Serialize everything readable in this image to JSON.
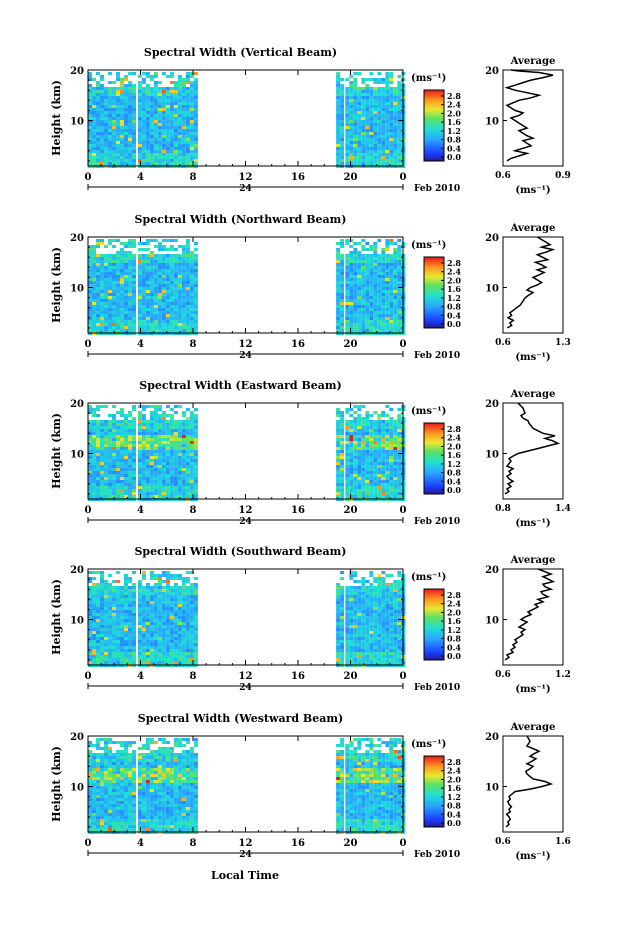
{
  "figure": {
    "date_label": "Feb 2010",
    "day_label": "24",
    "xlabel": "Local Time",
    "ylabel": "Height (km)",
    "colorbar_unit": "(ms⁻¹)",
    "average_title": "Average",
    "average_unit": "(ms⁻¹)"
  },
  "chart_data": [
    {
      "type": "heatmap",
      "title": "Spectral Width (Vertical Beam)",
      "xlabel": "Local Time",
      "ylabel": "Height (km)",
      "xlim": [
        0,
        24
      ],
      "ylim": [
        1,
        20
      ],
      "x_ticks": [
        "0",
        "4",
        "8",
        "12",
        "16",
        "20",
        "0"
      ],
      "y_ticks": [
        "10",
        "20"
      ],
      "colorbar_ticks": [
        "0.0",
        "0.4",
        "0.8",
        "1.2",
        "1.6",
        "2.0",
        "2.4",
        "2.8"
      ],
      "data_segments_hours": [
        [
          0,
          3.6
        ],
        [
          3.8,
          8.2
        ],
        [
          18.9,
          19.4
        ],
        [
          19.6,
          24
        ]
      ],
      "average": {
        "title": "Average",
        "xlim": [
          0.6,
          0.9
        ],
        "x_ticks": [
          "0.6",
          "0.9"
        ],
        "y_ticks": [
          "10",
          "20"
        ],
        "x": [
          0.62,
          0.64,
          0.68,
          0.72,
          0.66,
          0.7,
          0.74,
          0.72,
          0.7,
          0.75,
          0.72,
          0.7,
          0.68,
          0.72,
          0.7,
          0.68,
          0.66,
          0.64,
          0.68,
          0.7,
          0.66,
          0.64,
          0.62,
          0.65,
          0.68,
          0.74,
          0.78,
          0.72,
          0.66,
          0.62,
          0.66,
          0.7,
          0.74,
          0.8,
          0.85,
          0.78,
          0.68,
          0.64
        ],
        "y": [
          2.0,
          2.5,
          3.0,
          3.5,
          4.0,
          4.5,
          5.0,
          5.5,
          6.0,
          6.5,
          7.0,
          7.5,
          8.0,
          8.5,
          9.0,
          9.5,
          10.0,
          10.5,
          11.0,
          11.5,
          12.0,
          12.5,
          13.0,
          13.5,
          14.0,
          14.5,
          15.0,
          15.5,
          16.0,
          16.5,
          17.0,
          17.5,
          18.0,
          18.5,
          19.0,
          19.5,
          19.8,
          20.0
        ]
      }
    },
    {
      "type": "heatmap",
      "title": "Spectral Width (Northward Beam)",
      "xlabel": "Local Time",
      "ylabel": "Height (km)",
      "xlim": [
        0,
        24
      ],
      "ylim": [
        1,
        20
      ],
      "x_ticks": [
        "0",
        "4",
        "8",
        "12",
        "16",
        "20",
        "0"
      ],
      "y_ticks": [
        "10",
        "20"
      ],
      "colorbar_ticks": [
        "0.0",
        "0.4",
        "0.8",
        "1.2",
        "1.6",
        "2.0",
        "2.4",
        "2.8"
      ],
      "data_segments_hours": [
        [
          0,
          3.6
        ],
        [
          3.8,
          8.2
        ],
        [
          18.9,
          19.4
        ],
        [
          19.6,
          24
        ]
      ],
      "average": {
        "title": "Average",
        "xlim": [
          0.6,
          1.3
        ],
        "x_ticks": [
          "0.6",
          "1.3"
        ],
        "y_ticks": [
          "10",
          "20"
        ],
        "x": [
          0.65,
          0.7,
          0.68,
          0.72,
          0.66,
          0.7,
          0.68,
          0.72,
          0.76,
          0.8,
          0.82,
          0.84,
          0.86,
          0.9,
          0.95,
          0.88,
          0.92,
          1.0,
          1.05,
          1.0,
          0.95,
          1.02,
          1.08,
          1.0,
          1.1,
          1.05,
          0.98,
          1.12,
          1.06,
          1.0,
          1.1,
          1.18,
          1.05,
          1.15,
          1.1,
          1.0
        ],
        "y": [
          2.0,
          2.5,
          3.0,
          3.5,
          4.0,
          4.5,
          5.0,
          5.5,
          6.0,
          6.5,
          7.0,
          7.5,
          8.0,
          8.5,
          9.0,
          9.5,
          10.0,
          10.5,
          11.0,
          11.5,
          12.0,
          12.5,
          13.0,
          13.5,
          14.0,
          14.5,
          15.0,
          15.5,
          16.0,
          16.5,
          17.0,
          17.5,
          18.0,
          18.5,
          19.0,
          20.0
        ]
      }
    },
    {
      "type": "heatmap",
      "title": "Spectral Width (Eastward Beam)",
      "xlabel": "Local Time",
      "ylabel": "Height (km)",
      "xlim": [
        0,
        24
      ],
      "ylim": [
        1,
        20
      ],
      "x_ticks": [
        "0",
        "4",
        "8",
        "12",
        "16",
        "20",
        "0"
      ],
      "y_ticks": [
        "10",
        "20"
      ],
      "colorbar_ticks": [
        "0.0",
        "0.4",
        "0.8",
        "1.2",
        "1.6",
        "2.0",
        "2.4",
        "2.8"
      ],
      "data_segments_hours": [
        [
          0,
          3.6
        ],
        [
          3.8,
          8.2
        ],
        [
          18.9,
          19.4
        ],
        [
          19.6,
          24
        ]
      ],
      "average": {
        "title": "Average",
        "xlim": [
          0.8,
          1.4
        ],
        "x_ticks": [
          "0.8",
          "1.4"
        ],
        "y_ticks": [
          "10",
          "20"
        ],
        "x": [
          0.82,
          0.86,
          0.84,
          0.88,
          0.85,
          0.9,
          0.86,
          0.84,
          0.88,
          0.86,
          0.9,
          0.84,
          0.86,
          0.88,
          0.86,
          0.9,
          0.95,
          1.05,
          1.15,
          1.25,
          1.35,
          1.3,
          1.22,
          1.32,
          1.2,
          1.15,
          1.1,
          1.08,
          1.06,
          1.05,
          1.0,
          0.98,
          1.02,
          1.0,
          0.95
        ],
        "y": [
          2.0,
          2.5,
          3.0,
          3.5,
          4.0,
          4.5,
          5.0,
          5.5,
          6.0,
          6.5,
          7.0,
          7.5,
          8.0,
          8.5,
          9.0,
          9.5,
          10.0,
          10.5,
          11.0,
          11.5,
          12.0,
          12.5,
          13.0,
          13.5,
          14.0,
          14.5,
          15.0,
          15.5,
          16.0,
          16.5,
          17.0,
          17.5,
          18.0,
          19.0,
          20.0
        ]
      }
    },
    {
      "type": "heatmap",
      "title": "Spectral Width (Southward Beam)",
      "xlabel": "Local Time",
      "ylabel": "Height (km)",
      "xlim": [
        0,
        24
      ],
      "ylim": [
        1,
        20
      ],
      "x_ticks": [
        "0",
        "4",
        "8",
        "12",
        "16",
        "20",
        "0"
      ],
      "y_ticks": [
        "10",
        "20"
      ],
      "colorbar_ticks": [
        "0.0",
        "0.4",
        "0.8",
        "1.2",
        "1.6",
        "2.0",
        "2.4",
        "2.8"
      ],
      "data_segments_hours": [
        [
          0,
          3.6
        ],
        [
          3.8,
          8.2
        ],
        [
          18.9,
          19.4
        ],
        [
          19.6,
          24
        ]
      ],
      "average": {
        "title": "Average",
        "xlim": [
          0.6,
          1.2
        ],
        "x_ticks": [
          "0.6",
          "1.2"
        ],
        "y_ticks": [
          "10",
          "20"
        ],
        "x": [
          0.62,
          0.66,
          0.64,
          0.7,
          0.68,
          0.72,
          0.7,
          0.74,
          0.72,
          0.76,
          0.8,
          0.78,
          0.82,
          0.76,
          0.8,
          0.84,
          0.78,
          0.82,
          0.88,
          0.85,
          0.9,
          0.95,
          0.92,
          1.0,
          0.95,
          1.05,
          1.0,
          0.98,
          1.08,
          1.02,
          1.0,
          1.1,
          1.05,
          1.0,
          1.08,
          0.95
        ],
        "y": [
          2.0,
          2.5,
          3.0,
          3.5,
          4.0,
          4.5,
          5.0,
          5.5,
          6.0,
          6.5,
          7.0,
          7.5,
          8.0,
          8.5,
          9.0,
          9.5,
          10.0,
          10.5,
          11.0,
          11.5,
          12.0,
          12.5,
          13.0,
          13.5,
          14.0,
          14.5,
          15.0,
          15.5,
          16.0,
          16.5,
          17.0,
          17.5,
          18.0,
          18.5,
          19.0,
          20.0
        ]
      }
    },
    {
      "type": "heatmap",
      "title": "Spectral Width (Westward Beam)",
      "xlabel": "Local Time",
      "ylabel": "Height (km)",
      "xlim": [
        0,
        24
      ],
      "ylim": [
        1,
        20
      ],
      "x_ticks": [
        "0",
        "4",
        "8",
        "12",
        "16",
        "20",
        "0"
      ],
      "y_ticks": [
        "10",
        "20"
      ],
      "colorbar_ticks": [
        "0.0",
        "0.4",
        "0.8",
        "1.2",
        "1.6",
        "2.0",
        "2.4",
        "2.8"
      ],
      "data_segments_hours": [
        [
          0,
          3.6
        ],
        [
          3.8,
          8.2
        ],
        [
          18.9,
          19.4
        ],
        [
          19.6,
          24
        ]
      ],
      "average": {
        "title": "Average",
        "xlim": [
          0.6,
          1.6
        ],
        "x_ticks": [
          "0.6",
          "1.6"
        ],
        "y_ticks": [
          "10",
          "20"
        ],
        "x": [
          0.65,
          0.7,
          0.68,
          0.72,
          0.7,
          0.66,
          0.72,
          0.7,
          0.74,
          0.7,
          0.68,
          0.72,
          0.7,
          0.75,
          0.8,
          1.05,
          1.25,
          1.4,
          1.3,
          1.1,
          1.05,
          1.0,
          0.98,
          1.05,
          1.1,
          1.0,
          1.08,
          1.15,
          1.05,
          1.12,
          1.2,
          1.1,
          1.0,
          1.05,
          1.0
        ],
        "y": [
          2.0,
          2.5,
          3.0,
          3.5,
          4.0,
          4.5,
          5.0,
          5.5,
          6.0,
          6.5,
          7.0,
          7.5,
          8.0,
          8.5,
          9.0,
          9.5,
          10.0,
          10.5,
          11.0,
          11.5,
          12.0,
          12.5,
          13.0,
          13.5,
          14.0,
          14.5,
          15.0,
          15.5,
          16.0,
          16.5,
          17.0,
          17.5,
          18.0,
          19.0,
          20.0
        ]
      }
    }
  ]
}
